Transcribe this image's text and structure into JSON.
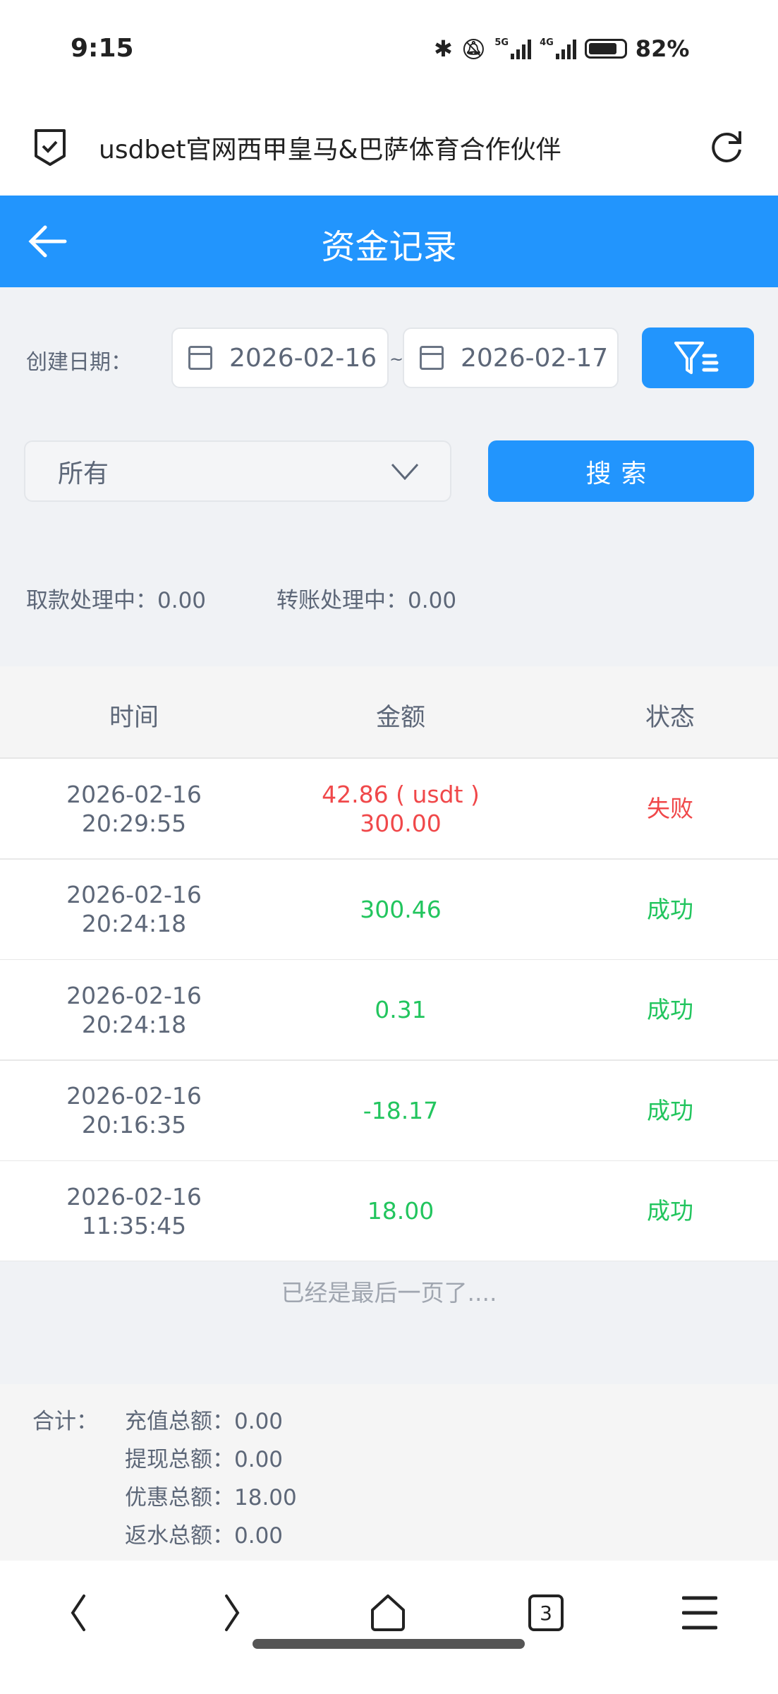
{
  "status_bar": {
    "time": "9:15",
    "net1": "5G",
    "net2": "4G",
    "battery": "82%",
    "battery_level": 0.82
  },
  "browser": {
    "page_title": "usdbet官网西甲皇马&巴萨体育合作伙伴",
    "tab_count": "3"
  },
  "header": {
    "title": "资金记录"
  },
  "filters": {
    "date_label": "创建日期：",
    "start_date": "2026-02-16",
    "separator": "~",
    "end_date": "2026-02-17",
    "type_selected": "所有",
    "search_label": "搜索"
  },
  "pending": {
    "withdraw": "取款处理中：0.00",
    "transfer": "转账处理中：0.00"
  },
  "table": {
    "headers": [
      "时间",
      "金额",
      "状态"
    ],
    "rows": [
      {
        "date": "2026-02-16",
        "time": "20:29:55",
        "amount": "42.86 ( usdt )",
        "amount2": "300.00",
        "status": "失败",
        "color": "#f0484a"
      },
      {
        "date": "2026-02-16",
        "time": "20:24:18",
        "amount": "300.46",
        "amount2": "",
        "status": "成功",
        "color": "#22c55e"
      },
      {
        "date": "2026-02-16",
        "time": "20:24:18",
        "amount": "0.31",
        "amount2": "",
        "status": "成功",
        "color": "#22c55e"
      },
      {
        "date": "2026-02-16",
        "time": "20:16:35",
        "amount": "-18.17",
        "amount2": "",
        "status": "成功",
        "color": "#22c55e"
      },
      {
        "date": "2026-02-16",
        "time": "11:35:45",
        "amount": "18.00",
        "amount2": "",
        "status": "成功",
        "color": "#22c55e"
      }
    ]
  },
  "last_page_text": "已经是最后一页了....",
  "summary": {
    "label": "合计：",
    "lines": [
      "充值总额：0.00",
      "提现总额：0.00",
      "优惠总额：18.00",
      "返水总额：0.00"
    ]
  }
}
